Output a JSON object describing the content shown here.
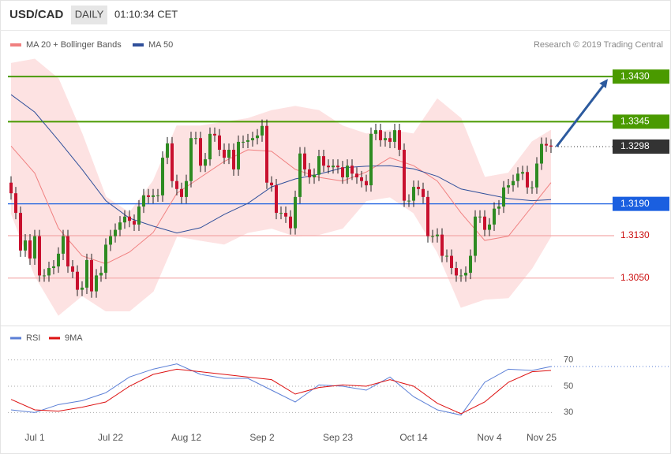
{
  "header": {
    "symbol": "USD/CAD",
    "period": "DAILY",
    "time": "01:10:34 CET"
  },
  "credit": "Research © 2019 Trading Central",
  "chart_data": [
    {
      "type": "candlestick",
      "up_color": "#2e8b22",
      "down_color": "#c8102e",
      "xlim": [
        -2,
        139
      ],
      "ylim": [
        1.2965,
        1.3515
      ],
      "open": [
        1.323,
        1.321,
        1.3173,
        1.3102,
        1.3121,
        1.3087,
        1.3129,
        1.3055,
        1.3055,
        1.3069,
        1.3072,
        1.3096,
        1.3129,
        1.3072,
        1.3062,
        1.3028,
        1.3032,
        1.3084,
        1.3025,
        1.3055,
        1.306,
        1.3113,
        1.3129,
        1.3141,
        1.3155,
        1.3166,
        1.3158,
        1.3151,
        1.3185,
        1.3206,
        1.3203,
        1.3206,
        1.3206,
        1.3277,
        1.3304,
        1.3233,
        1.3218,
        1.3203,
        1.3233,
        1.3314,
        1.3314,
        1.3262,
        1.3274,
        1.3322,
        1.3319,
        1.3292,
        1.3277,
        1.3292,
        1.3255,
        1.3307,
        1.3307,
        1.331,
        1.3314,
        1.3319,
        1.3337,
        1.323,
        1.3225,
        1.3173,
        1.3173,
        1.3166,
        1.3144,
        1.3203,
        1.3285,
        1.3255,
        1.324,
        1.3245,
        1.328,
        1.3262,
        1.3259,
        1.3262,
        1.3259,
        1.324,
        1.3262,
        1.3247,
        1.324,
        1.3233,
        1.3225,
        1.3322,
        1.3329,
        1.331,
        1.3314,
        1.3307,
        1.3329,
        1.3292,
        1.3196,
        1.3196,
        1.3222,
        1.3218,
        1.3203,
        1.3129,
        1.3129,
        1.3132,
        1.3092,
        1.3092,
        1.3069,
        1.3055,
        1.3055,
        1.306,
        1.3092,
        1.3166,
        1.3166,
        1.3141,
        1.3151,
        1.3181,
        1.3185,
        1.3221,
        1.3225,
        1.3233,
        1.3247,
        1.325,
        1.3221,
        1.3221,
        1.3266,
        1.3303,
        1.33
      ],
      "high": [
        1.3242,
        1.3222,
        1.3185,
        1.3133,
        1.3133,
        1.3141,
        1.3141,
        1.3067,
        1.3081,
        1.3084,
        1.3108,
        1.3141,
        1.3141,
        1.3084,
        1.3074,
        1.3044,
        1.3096,
        1.3096,
        1.3067,
        1.3072,
        1.3125,
        1.3141,
        1.3153,
        1.3167,
        1.3178,
        1.3178,
        1.317,
        1.3197,
        1.3218,
        1.3218,
        1.3218,
        1.3218,
        1.3289,
        1.3316,
        1.3316,
        1.3245,
        1.323,
        1.3245,
        1.3326,
        1.3326,
        1.3326,
        1.3286,
        1.3334,
        1.3334,
        1.3331,
        1.3304,
        1.3304,
        1.3304,
        1.3319,
        1.3319,
        1.3322,
        1.3326,
        1.3331,
        1.3349,
        1.3349,
        1.3242,
        1.3237,
        1.3185,
        1.3185,
        1.3178,
        1.3215,
        1.3297,
        1.3297,
        1.3267,
        1.3257,
        1.3292,
        1.3292,
        1.3274,
        1.3274,
        1.3274,
        1.3271,
        1.3274,
        1.3274,
        1.3259,
        1.3252,
        1.3245,
        1.3334,
        1.3341,
        1.3341,
        1.3326,
        1.3326,
        1.3341,
        1.3341,
        1.3304,
        1.3208,
        1.3234,
        1.3234,
        1.323,
        1.3215,
        1.3141,
        1.3144,
        1.3144,
        1.3104,
        1.3104,
        1.3081,
        1.3067,
        1.3072,
        1.3104,
        1.3178,
        1.3178,
        1.3178,
        1.3163,
        1.3193,
        1.3197,
        1.3233,
        1.3237,
        1.3245,
        1.3259,
        1.3262,
        1.3262,
        1.3233,
        1.3278,
        1.3315,
        1.3315,
        1.3312
      ],
      "low": [
        1.3198,
        1.3161,
        1.309,
        1.309,
        1.3075,
        1.3075,
        1.3043,
        1.3043,
        1.3043,
        1.3057,
        1.306,
        1.3084,
        1.306,
        1.305,
        1.3016,
        1.3016,
        1.302,
        1.3013,
        1.3013,
        1.3043,
        1.3048,
        1.3101,
        1.3117,
        1.3129,
        1.3143,
        1.3146,
        1.3139,
        1.3139,
        1.3173,
        1.3191,
        1.3191,
        1.3194,
        1.3194,
        1.3265,
        1.3221,
        1.3206,
        1.3191,
        1.3191,
        1.3221,
        1.3302,
        1.325,
        1.325,
        1.3262,
        1.3307,
        1.328,
        1.3265,
        1.3265,
        1.3243,
        1.3243,
        1.3295,
        1.3295,
        1.3298,
        1.3302,
        1.3307,
        1.3218,
        1.3213,
        1.3161,
        1.3161,
        1.3154,
        1.3132,
        1.3132,
        1.3191,
        1.3243,
        1.3228,
        1.3228,
        1.3233,
        1.325,
        1.3247,
        1.3247,
        1.3247,
        1.3228,
        1.3228,
        1.3235,
        1.3228,
        1.3221,
        1.3213,
        1.3213,
        1.331,
        1.3298,
        1.3298,
        1.3295,
        1.3295,
        1.328,
        1.3184,
        1.3184,
        1.3184,
        1.3206,
        1.3191,
        1.3117,
        1.3117,
        1.3117,
        1.308,
        1.308,
        1.3057,
        1.3043,
        1.3043,
        1.3043,
        1.3048,
        1.308,
        1.3154,
        1.3129,
        1.3129,
        1.3139,
        1.3169,
        1.3173,
        1.3209,
        1.3213,
        1.3221,
        1.3235,
        1.3209,
        1.3209,
        1.3209,
        1.3254,
        1.3288,
        1.3286
      ],
      "close": [
        1.321,
        1.3173,
        1.3102,
        1.3121,
        1.3087,
        1.3129,
        1.3055,
        1.3055,
        1.3069,
        1.3072,
        1.3096,
        1.3129,
        1.3072,
        1.3062,
        1.3028,
        1.3032,
        1.3084,
        1.3025,
        1.3055,
        1.306,
        1.3113,
        1.3129,
        1.3141,
        1.3155,
        1.3166,
        1.3158,
        1.3151,
        1.3185,
        1.3206,
        1.3203,
        1.3206,
        1.3206,
        1.3277,
        1.3304,
        1.3233,
        1.3218,
        1.3203,
        1.3233,
        1.3314,
        1.3314,
        1.3262,
        1.3274,
        1.3322,
        1.3319,
        1.3292,
        1.3277,
        1.3292,
        1.3255,
        1.3307,
        1.3307,
        1.331,
        1.3314,
        1.3319,
        1.3337,
        1.323,
        1.3225,
        1.3173,
        1.3173,
        1.3166,
        1.3144,
        1.3203,
        1.3285,
        1.3255,
        1.324,
        1.3245,
        1.328,
        1.3262,
        1.3259,
        1.3262,
        1.3259,
        1.324,
        1.3262,
        1.3247,
        1.324,
        1.3233,
        1.3225,
        1.3322,
        1.3329,
        1.331,
        1.3314,
        1.3307,
        1.3329,
        1.3292,
        1.3196,
        1.3196,
        1.3222,
        1.3218,
        1.3203,
        1.3129,
        1.3129,
        1.3132,
        1.3092,
        1.3092,
        1.3069,
        1.3055,
        1.3055,
        1.306,
        1.3092,
        1.3166,
        1.3166,
        1.3141,
        1.3151,
        1.3181,
        1.3185,
        1.3221,
        1.3225,
        1.3233,
        1.3247,
        1.325,
        1.3221,
        1.3221,
        1.3266,
        1.3303,
        1.33,
        1.3298
      ],
      "series": [
        {
          "name": "MA 20 + Bollinger Bands",
          "color": "#f08080",
          "band_color": "#fde2e2",
          "x": [
            0,
            5,
            10,
            15,
            20,
            25,
            30,
            35,
            40,
            45,
            50,
            55,
            60,
            65,
            70,
            75,
            80,
            85,
            90,
            95,
            100,
            105,
            110,
            114
          ],
          "values": [
            1.3299,
            1.3248,
            1.3144,
            1.3092,
            1.3077,
            1.3099,
            1.3136,
            1.321,
            1.324,
            1.327,
            1.3292,
            1.3289,
            1.3255,
            1.324,
            1.3233,
            1.325,
            1.3277,
            1.3262,
            1.3233,
            1.3173,
            1.3121,
            1.3129,
            1.3185,
            1.323
          ],
          "upper": [
            1.3455,
            1.3463,
            1.3426,
            1.3322,
            1.3203,
            1.3173,
            1.3233,
            1.3337,
            1.3337,
            1.3344,
            1.3351,
            1.3366,
            1.3374,
            1.3366,
            1.3337,
            1.3322,
            1.3329,
            1.3322,
            1.3388,
            1.3351,
            1.324,
            1.3248,
            1.3307,
            1.3329
          ],
          "lower": [
            1.3173,
            1.3055,
            1.298,
            1.3017,
            1.2988,
            1.2988,
            1.3025,
            1.3129,
            1.3121,
            1.3114,
            1.3136,
            1.3144,
            1.3129,
            1.3132,
            1.3144,
            1.3196,
            1.3203,
            1.3173,
            1.3099,
            1.2995,
            1.301,
            1.3013,
            1.3069,
            1.3129
          ]
        },
        {
          "name": "MA 50",
          "color": "#2f4f9a",
          "x": [
            0,
            5,
            10,
            15,
            20,
            25,
            30,
            35,
            40,
            45,
            50,
            55,
            60,
            65,
            70,
            75,
            80,
            85,
            90,
            95,
            100,
            105,
            110,
            114
          ],
          "values": [
            1.3396,
            1.3363,
            1.331,
            1.3255,
            1.3196,
            1.3163,
            1.3148,
            1.3135,
            1.3145,
            1.317,
            1.3191,
            1.3222,
            1.3237,
            1.3246,
            1.3258,
            1.3261,
            1.3262,
            1.3256,
            1.3242,
            1.3218,
            1.3209,
            1.32,
            1.3196,
            1.3198
          ]
        }
      ],
      "levels": [
        {
          "value": 1.343,
          "label": "1.3430",
          "color": "#4a9a00",
          "box": true,
          "line": "solid"
        },
        {
          "value": 1.3345,
          "label": "1.3345",
          "color": "#4a9a00",
          "box": true,
          "line": "solid"
        },
        {
          "value": 1.3298,
          "label": "1.3298",
          "color": "#333333",
          "box": true,
          "line": "dotted"
        },
        {
          "value": 1.319,
          "label": "1.3190",
          "color": "#1a5fe0",
          "box": true,
          "line": "solid"
        },
        {
          "value": 1.313,
          "label": "1.3130",
          "color": "#cc1111",
          "box": false,
          "line": "solid"
        },
        {
          "value": 1.305,
          "label": "1.3050",
          "color": "#cc1111",
          "box": false,
          "line": "solid"
        }
      ]
    },
    {
      "type": "line",
      "xlim": [
        -2,
        139
      ],
      "ylim": [
        20,
        80
      ],
      "yticks": [
        30,
        50,
        70
      ],
      "xticks": [
        {
          "value": 5,
          "label": "Jul 1"
        },
        {
          "value": 21,
          "label": "Jul 22"
        },
        {
          "value": 37,
          "label": "Aug 12"
        },
        {
          "value": 53,
          "label": "Sep 2"
        },
        {
          "value": 69,
          "label": "Sep 23"
        },
        {
          "value": 85,
          "label": "Oct 14"
        },
        {
          "value": 101,
          "label": "Nov 4"
        },
        {
          "value": 112,
          "label": "Nov 25"
        }
      ],
      "series": [
        {
          "name": "RSI",
          "color": "#5b7fd6",
          "x": [
            0,
            5,
            10,
            15,
            20,
            25,
            30,
            35,
            40,
            45,
            50,
            55,
            60,
            65,
            70,
            75,
            80,
            85,
            90,
            95,
            100,
            105,
            110,
            114
          ],
          "values": [
            32,
            30,
            36,
            39,
            45,
            57,
            63,
            67,
            59,
            56,
            56,
            47,
            38,
            51,
            50,
            47,
            57,
            42,
            32,
            28,
            53,
            63,
            62,
            65
          ]
        },
        {
          "name": "9MA",
          "color": "#dd1111",
          "x": [
            0,
            5,
            10,
            15,
            20,
            25,
            30,
            35,
            40,
            45,
            50,
            55,
            60,
            65,
            70,
            75,
            80,
            85,
            90,
            95,
            100,
            105,
            110,
            114
          ],
          "values": [
            40,
            32,
            31,
            34,
            38,
            50,
            59,
            63,
            61,
            59,
            57,
            55,
            44,
            49,
            51,
            50,
            55,
            50,
            37,
            29,
            38,
            53,
            61,
            62
          ]
        }
      ]
    }
  ]
}
